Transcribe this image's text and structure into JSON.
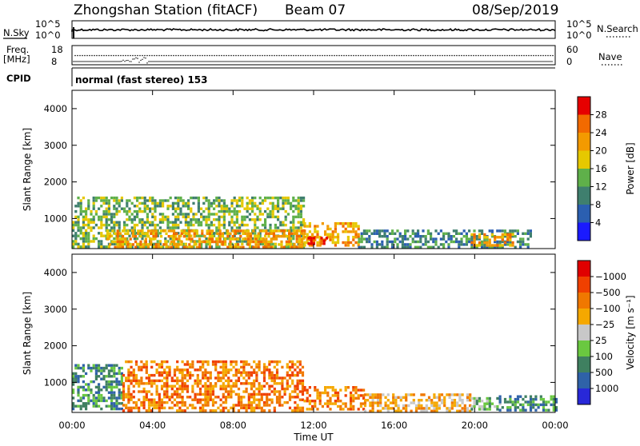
{
  "header": {
    "station": "Zhongshan Station (fitACF)",
    "beam": "Beam 07",
    "date": "08/Sep/2019"
  },
  "top_panels": {
    "nsky_label": "N.Sky",
    "nsky_ticks": [
      "10^5",
      "10^0"
    ],
    "nsearch_label": "N.Search",
    "nsearch_ticks": [
      "10^5",
      "10^0"
    ],
    "freq_label": "Freq.",
    "freq_unit": "[MHz]",
    "freq_ticks": [
      "18",
      "8"
    ],
    "nave_label": "Nave",
    "nave_ticks": [
      "60",
      "0"
    ],
    "cpid_label": "CPID",
    "cpid_text": "normal (fast stereo) 153"
  },
  "chart_data": [
    {
      "type": "heatmap",
      "name": "power",
      "ylabel": "Slant Range [km]",
      "ytick_labels": [
        "1000",
        "2000",
        "3000",
        "4000"
      ],
      "yticks": [
        1000,
        2000,
        3000,
        4000
      ],
      "ylim": [
        180,
        4500
      ],
      "xlim": [
        0,
        24
      ],
      "colorbar": {
        "label": "Power [dB]",
        "tick_labels": [
          "4",
          "8",
          "12",
          "16",
          "20",
          "24",
          "28"
        ],
        "colors": [
          "#1a1aff",
          "#2b5fb0",
          "#3f7f6e",
          "#5fb04a",
          "#e6c800",
          "#f39a00",
          "#f26a00",
          "#e60000"
        ]
      },
      "echo_regions": [
        {
          "t0": 0.0,
          "t1": 11.5,
          "r0": 250,
          "r1": 1600,
          "level": 3
        },
        {
          "t0": 1.7,
          "t1": 11.5,
          "r0": 250,
          "r1": 700,
          "level": 5
        },
        {
          "t0": 11.5,
          "t1": 14.2,
          "r0": 250,
          "r1": 900,
          "level": 5
        },
        {
          "t0": 11.7,
          "t1": 12.7,
          "r0": 300,
          "r1": 500,
          "level": 7
        },
        {
          "t0": 14.2,
          "t1": 22.8,
          "r0": 250,
          "r1": 700,
          "level": 2
        },
        {
          "t0": 19.8,
          "t1": 21.9,
          "r0": 250,
          "r1": 600,
          "level": 5
        }
      ]
    },
    {
      "type": "heatmap",
      "name": "velocity",
      "ylabel": "Slant Range [km]",
      "ytick_labels": [
        "1000",
        "2000",
        "3000",
        "4000"
      ],
      "yticks": [
        1000,
        2000,
        3000,
        4000
      ],
      "ylim": [
        180,
        4500
      ],
      "xlim": [
        0,
        24
      ],
      "colorbar": {
        "label": "Velocity [m s⁻¹]",
        "tick_labels": [
          "1000",
          "500",
          "100",
          "25",
          "−25",
          "−100",
          "−500",
          "−1000"
        ],
        "colors": [
          "#2828d8",
          "#2f62a8",
          "#3f8060",
          "#6ac840",
          "#c8c8c8",
          "#f5a800",
          "#f07800",
          "#f04000",
          "#e00000"
        ]
      },
      "echo_regions": [
        {
          "t0": 0.0,
          "t1": 2.5,
          "r0": 250,
          "r1": 1500,
          "level": 2
        },
        {
          "t0": 2.5,
          "t1": 11.5,
          "r0": 250,
          "r1": 1600,
          "level": 6
        },
        {
          "t0": 11.5,
          "t1": 14.5,
          "r0": 250,
          "r1": 900,
          "level": 6
        },
        {
          "t0": 14.5,
          "t1": 19.8,
          "r0": 250,
          "r1": 700,
          "level": 5
        },
        {
          "t0": 19.8,
          "t1": 21.2,
          "r0": 250,
          "r1": 600,
          "level": 3
        },
        {
          "t0": 21.2,
          "t1": 24.0,
          "r0": 250,
          "r1": 650,
          "level": 2
        }
      ]
    }
  ],
  "x_axis": {
    "label": "Time UT",
    "tick_labels": [
      "00:00",
      "04:00",
      "08:00",
      "12:00",
      "16:00",
      "20:00",
      "00:00"
    ],
    "ticks": [
      0,
      4,
      8,
      12,
      16,
      20,
      24
    ]
  }
}
